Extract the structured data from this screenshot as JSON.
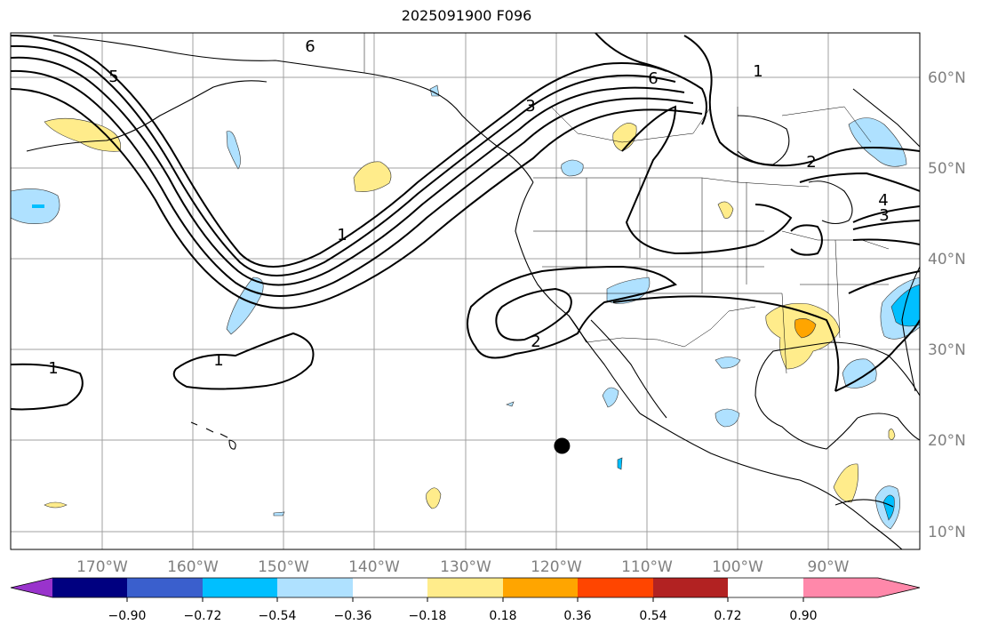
{
  "title": "2025091900 F096",
  "map": {
    "lon_labels": [
      "170°W",
      "160°W",
      "150°W",
      "140°W",
      "130°W",
      "120°W",
      "110°W",
      "100°W",
      "90°W"
    ],
    "lat_labels": [
      "60°N",
      "50°N",
      "40°N",
      "30°N",
      "20°N",
      "10°N"
    ],
    "contour_labels": [
      "6",
      "5",
      "1",
      "3",
      "6",
      "1",
      "2",
      "3",
      "4",
      "1",
      "2",
      "1"
    ],
    "marker": {
      "lon": -119.3,
      "lat": 19.4
    }
  },
  "colorbar": {
    "colors": [
      "#9933cc",
      "#000080",
      "#3a5fcd",
      "#00bfff",
      "#afe1ff",
      "#ffffff",
      "#ffec8b",
      "#ffa500",
      "#ff4500",
      "#b22222",
      "#ff88aa"
    ],
    "tick_labels": [
      "−0.90",
      "−0.72",
      "−0.54",
      "−0.36",
      "−0.18",
      "0.18",
      "0.36",
      "0.54",
      "0.72",
      "0.90"
    ]
  }
}
